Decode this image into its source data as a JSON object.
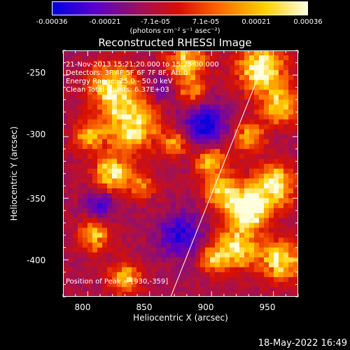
{
  "colorbar": {
    "tick_labels": [
      "-0.00036",
      "-0.00021",
      "-7.1e-05",
      "7.1e-05",
      "0.00021",
      "0.00036"
    ],
    "tick_values": [
      -0.00036,
      -0.00021,
      -7.1e-05,
      7.1e-05,
      0.00021,
      0.00036
    ],
    "range": [
      -0.00036,
      0.00036
    ],
    "units_label": "(photons cm⁻² s⁻¹ asec⁻²)",
    "colors": [
      "#0000e0",
      "#5a00c8",
      "#9a1060",
      "#d81000",
      "#ff7000",
      "#ffd000",
      "#ffffe0"
    ]
  },
  "chart_data": {
    "type": "heatmap",
    "title": "Reconstructed RHESSI Image",
    "xlabel": "Heliocentric X (arcsec)",
    "ylabel": "Heliocentric Y (arcsec)",
    "xlim": [
      780,
      970
    ],
    "ylim": [
      -430,
      -230
    ],
    "x_ticks": [
      800,
      850,
      900,
      950
    ],
    "x_tick_labels": [
      "800",
      "850",
      "900",
      "950"
    ],
    "y_ticks": [
      -250,
      -300,
      -350,
      -400
    ],
    "y_tick_labels": [
      "-250",
      "-300",
      "-350",
      "-400"
    ],
    "limb_line": {
      "x": [
        867,
        943
      ],
      "y": [
        -430,
        -238
      ]
    },
    "annotations": {
      "time": "21-Nov-2013 15:21:20.000 to 15:25:00.000",
      "detectors": "Detectors: 3F 4F 5F 6F 7F 8F, Att 0",
      "energy": "Energy Range: 25.0 - 50.0 keV",
      "method": "Clean    Total counts: 6.37E+03",
      "peak": "Position of Peak = [930,-359]"
    },
    "peak_position": [
      930,
      -359
    ]
  },
  "footer": {
    "timestamp": "18-May-2022 16:49"
  }
}
